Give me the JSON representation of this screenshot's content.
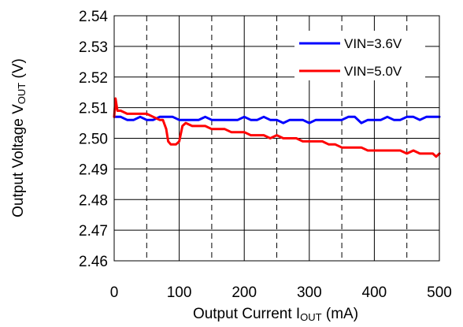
{
  "chart_data": {
    "type": "line",
    "xlabel": {
      "main": "Output Current I",
      "sub": "OUT",
      "unit": " (mA)"
    },
    "ylabel": {
      "main": "Output Voltage V",
      "sub": "OUT",
      "unit": " (V)"
    },
    "xlim": [
      0,
      500
    ],
    "ylim": [
      2.46,
      2.54
    ],
    "x_ticks": [
      0,
      100,
      200,
      300,
      400,
      500
    ],
    "x_tick_labels": [
      "0",
      "100",
      "200",
      "300",
      "400",
      "500"
    ],
    "y_ticks": [
      2.46,
      2.47,
      2.48,
      2.49,
      2.5,
      2.51,
      2.52,
      2.53,
      2.54
    ],
    "y_tick_labels": [
      "2.46",
      "2.47",
      "2.48",
      "2.49",
      "2.50",
      "2.51",
      "2.52",
      "2.53",
      "2.54"
    ],
    "grid": {
      "horizontal": "solid",
      "vertical_major": "solid",
      "vertical_minor": "dashed",
      "minor_x": [
        50,
        150,
        250,
        350,
        450
      ]
    },
    "legend_position": "top-right",
    "series": [
      {
        "name": "VIN=3.6V",
        "color": "#0000ff",
        "x": [
          0,
          10,
          20,
          30,
          40,
          50,
          60,
          70,
          80,
          90,
          100,
          110,
          120,
          130,
          140,
          150,
          160,
          170,
          180,
          190,
          200,
          210,
          220,
          230,
          240,
          250,
          260,
          270,
          280,
          290,
          300,
          310,
          320,
          330,
          340,
          350,
          360,
          370,
          380,
          390,
          400,
          410,
          420,
          430,
          440,
          450,
          460,
          470,
          480,
          490,
          500
        ],
        "y": [
          2.507,
          2.507,
          2.506,
          2.506,
          2.507,
          2.506,
          2.506,
          2.507,
          2.507,
          2.507,
          2.506,
          2.506,
          2.506,
          2.506,
          2.507,
          2.506,
          2.506,
          2.506,
          2.506,
          2.506,
          2.507,
          2.506,
          2.506,
          2.507,
          2.506,
          2.506,
          2.505,
          2.506,
          2.506,
          2.506,
          2.505,
          2.506,
          2.506,
          2.506,
          2.506,
          2.506,
          2.507,
          2.507,
          2.505,
          2.506,
          2.506,
          2.506,
          2.507,
          2.506,
          2.506,
          2.507,
          2.507,
          2.506,
          2.507,
          2.507,
          2.507
        ]
      },
      {
        "name": "VIN=5.0V",
        "color": "#ff0000",
        "x": [
          0,
          2,
          5,
          10,
          20,
          30,
          40,
          50,
          60,
          70,
          75,
          80,
          83,
          87,
          90,
          95,
          100,
          105,
          110,
          120,
          130,
          140,
          150,
          160,
          170,
          180,
          190,
          200,
          210,
          220,
          230,
          240,
          250,
          260,
          270,
          280,
          290,
          300,
          310,
          320,
          330,
          340,
          350,
          360,
          370,
          380,
          390,
          400,
          410,
          420,
          430,
          440,
          450,
          460,
          470,
          480,
          490,
          495,
          500
        ],
        "y": [
          2.507,
          2.513,
          2.509,
          2.509,
          2.508,
          2.508,
          2.508,
          2.508,
          2.507,
          2.506,
          2.506,
          2.503,
          2.499,
          2.498,
          2.498,
          2.498,
          2.499,
          2.504,
          2.505,
          2.504,
          2.504,
          2.504,
          2.503,
          2.503,
          2.503,
          2.502,
          2.502,
          2.502,
          2.501,
          2.501,
          2.501,
          2.5,
          2.501,
          2.5,
          2.5,
          2.5,
          2.499,
          2.499,
          2.499,
          2.499,
          2.498,
          2.498,
          2.497,
          2.497,
          2.497,
          2.497,
          2.496,
          2.496,
          2.496,
          2.496,
          2.496,
          2.496,
          2.495,
          2.496,
          2.495,
          2.495,
          2.495,
          2.494,
          2.495
        ]
      }
    ]
  }
}
